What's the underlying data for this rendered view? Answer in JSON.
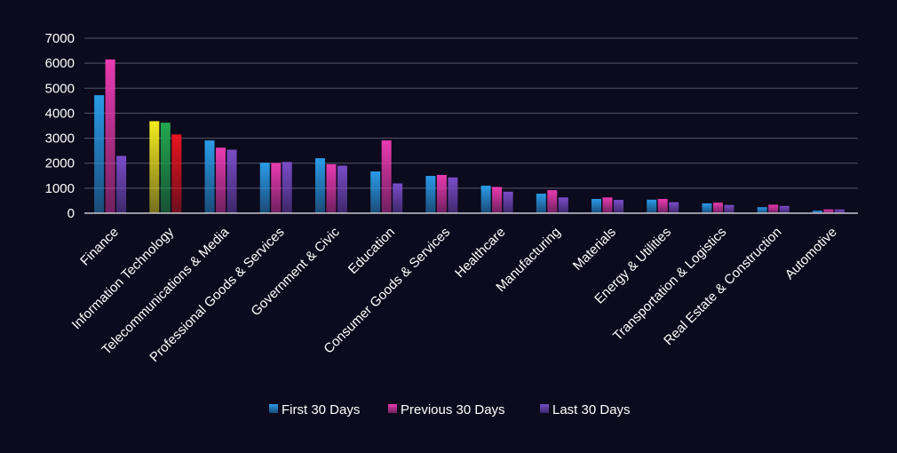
{
  "chart_data": {
    "type": "bar",
    "title": "",
    "xlabel": "",
    "ylabel": "",
    "ylim": [
      0,
      7000
    ],
    "yticks": [
      0,
      1000,
      2000,
      3000,
      4000,
      5000,
      6000,
      7000
    ],
    "grid": true,
    "legend_position": "bottom",
    "categories": [
      "Finance",
      "Information Technology",
      "Telecommunications & Media",
      "Professional Goods & Services",
      "Government & Civic",
      "Education",
      "Consumer Goods &  Services",
      "Healthcare",
      "Manufacturing",
      "Materials",
      "Energy & Utilities",
      "Transportation & Logistics",
      "Real Estate & Construction",
      "Automotive"
    ],
    "series": [
      {
        "name": "First 30 Days",
        "color": "#2a9be8",
        "values": [
          4720,
          3680,
          2910,
          2020,
          2200,
          1670,
          1490,
          1100,
          780,
          570,
          540,
          390,
          240,
          100
        ]
      },
      {
        "name": "Previous 30 Days",
        "color": "#e93bb0",
        "values": [
          6150,
          3620,
          2620,
          2010,
          1960,
          2910,
          1530,
          1050,
          920,
          630,
          570,
          420,
          340,
          150
        ]
      },
      {
        "name": "Last 30 Days",
        "color": "#7a4cc8",
        "values": [
          2290,
          3150,
          2540,
          2050,
          1900,
          1190,
          1430,
          860,
          630,
          530,
          440,
          330,
          290,
          150
        ]
      }
    ],
    "highlight_category": "Information Technology",
    "highlight_colors": [
      "#f4ea1e",
      "#23a84e",
      "#e8141e"
    ]
  }
}
